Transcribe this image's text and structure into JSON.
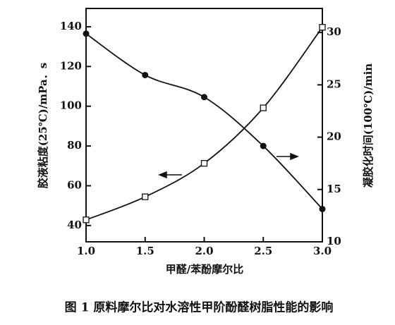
{
  "chart_data": {
    "type": "line",
    "caption": "图 1  原料摩尔比对水溶性甲阶酚醛树脂性能的影响",
    "x_label": "甲醛/苯酚摩尔比",
    "y_label": "胶液粘度(25℃)/mPa．s",
    "y2_label": "凝胶化时间(100℃)/min",
    "x": [
      1.0,
      1.5,
      2.0,
      2.5,
      3.0
    ],
    "series": [
      {
        "values": [
          136.5,
          115.7,
          104.6,
          80,
          48.3
        ],
        "color": "#111111",
        "marker": "filled-circle"
      },
      {
        "values": [
          12.1,
          14.3,
          17.5,
          22.8,
          30.5
        ],
        "color": "#111111",
        "marker": "open-square",
        "axis": "y2"
      }
    ],
    "xlim": [
      1.0,
      3.0
    ],
    "xticks": [
      {
        "value": 1.0,
        "label": "1.0"
      },
      {
        "value": 1.5,
        "label": "1.5"
      },
      {
        "value": 2.0,
        "label": "2.0"
      },
      {
        "value": 2.5,
        "label": "2.5"
      },
      {
        "value": 3.0,
        "label": "3.0"
      }
    ],
    "ylim": [
      31.8,
      149.2
    ],
    "yticks": [
      40,
      60,
      80,
      100,
      120,
      140
    ],
    "y2lim": [
      10,
      32.3
    ],
    "y2ticks": [
      10,
      15,
      20,
      25,
      30
    ]
  }
}
